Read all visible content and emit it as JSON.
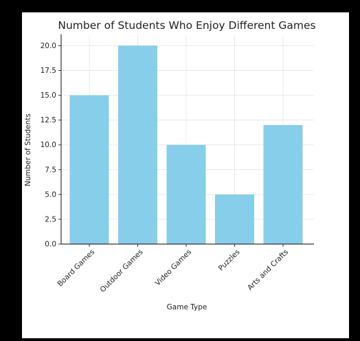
{
  "chart_data": {
    "type": "bar",
    "title": "Number of Students Who Enjoy Different Games",
    "xlabel": "Game Type",
    "ylabel": "Number of Students",
    "categories": [
      "Board Games",
      "Outdoor Games",
      "Video Games",
      "Puzzles",
      "Arts and Crafts"
    ],
    "values": [
      15,
      20,
      10,
      5,
      12
    ],
    "ylim": [
      0,
      21
    ],
    "yticks": [
      "0.0",
      "2.5",
      "5.0",
      "7.5",
      "10.0",
      "12.5",
      "15.0",
      "17.5",
      "20.0"
    ],
    "grid": true,
    "bar_color": "#87ceeb"
  }
}
